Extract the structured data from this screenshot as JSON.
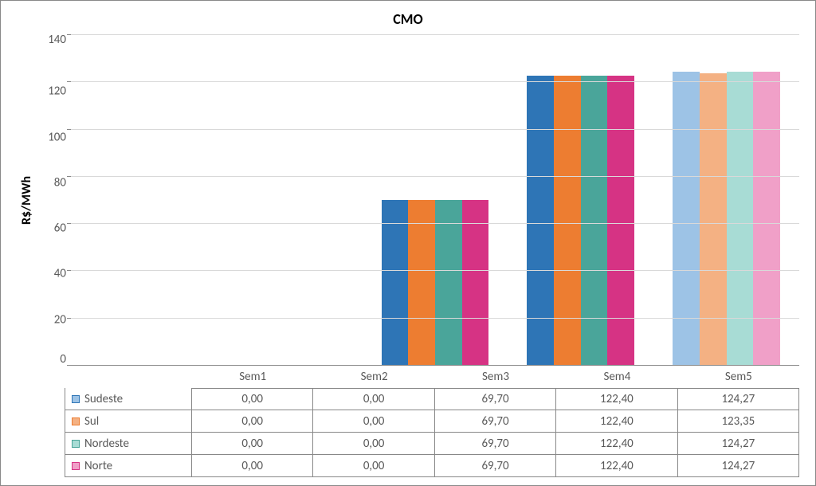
{
  "chart": {
    "title": "CMO",
    "ylabel": "R$/MWh",
    "ylim": [
      0,
      140
    ],
    "ytick_step": 20,
    "yticks": [
      140,
      120,
      100,
      80,
      60,
      40,
      20,
      0
    ],
    "categories": [
      "Sem1",
      "Sem2",
      "Sem3",
      "Sem4",
      "Sem5"
    ],
    "series": [
      {
        "name": "Sudeste",
        "color": "#2e75b6",
        "faded_color": "#9dc3e6",
        "values": [
          0.0,
          0.0,
          69.7,
          122.4,
          124.27
        ],
        "labels": [
          "0,00",
          "0,00",
          "69,70",
          "122,40",
          "124,27"
        ]
      },
      {
        "name": "Sul",
        "color": "#ed7d31",
        "faded_color": "#f4b183",
        "values": [
          0.0,
          0.0,
          69.7,
          122.4,
          123.35
        ],
        "labels": [
          "0,00",
          "0,00",
          "69,70",
          "122,40",
          "123,35"
        ]
      },
      {
        "name": "Nordeste",
        "color": "#4aa59a",
        "faded_color": "#a8dcd5",
        "values": [
          0.0,
          0.0,
          69.7,
          122.4,
          124.27
        ],
        "labels": [
          "0,00",
          "0,00",
          "69,70",
          "122,40",
          "124,27"
        ]
      },
      {
        "name": "Norte",
        "color": "#d63384",
        "faded_color": "#f0a0c8",
        "values": [
          0.0,
          0.0,
          69.7,
          122.4,
          124.27
        ],
        "labels": [
          "0,00",
          "0,00",
          "69,70",
          "122,40",
          "124,27"
        ]
      }
    ],
    "faded_category_index": 4,
    "background_color": "#ffffff",
    "grid_color": "#d9d9d9",
    "border_color": "#888888",
    "text_color": "#595959",
    "title_fontsize": 18,
    "label_fontsize": 16,
    "tick_fontsize": 15
  }
}
